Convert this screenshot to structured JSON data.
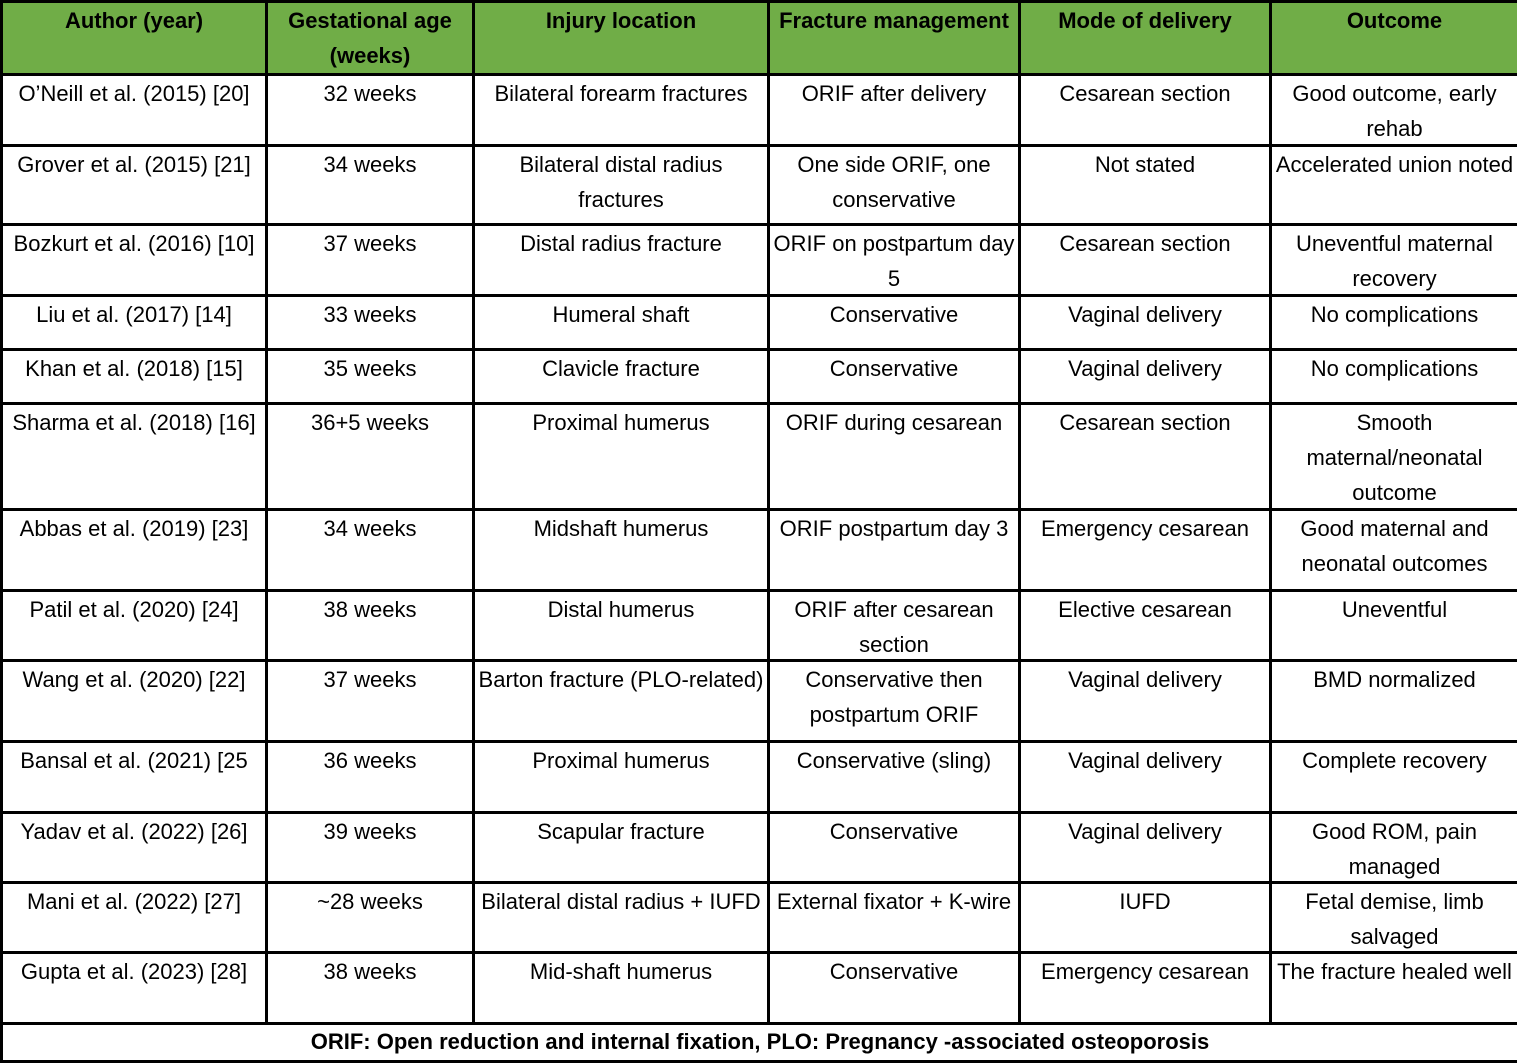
{
  "header": [
    "Author (year)",
    "Gestational age (weeks)",
    "Injury location",
    "Fracture management",
    "Mode of delivery",
    "Outcome"
  ],
  "header_color": "#70ad47",
  "rows": [
    [
      "O’Neill et al. (2015) [20]",
      "32 weeks",
      "Bilateral forearm fractures",
      "ORIF after delivery",
      "Cesarean section",
      "Good outcome, early rehab"
    ],
    [
      "Grover et al. (2015) [21]",
      "34 weeks",
      "Bilateral distal radius fractures",
      "One side ORIF, one conservative",
      "Not stated",
      "Accelerated union noted"
    ],
    [
      "Bozkurt et al. (2016) [10]",
      "37 weeks",
      "Distal radius fracture",
      "ORIF on postpartum day 5",
      "Cesarean section",
      "Uneventful maternal recovery"
    ],
    [
      "Liu et al. (2017) [14]",
      "33 weeks",
      "Humeral shaft",
      "Conservative",
      "Vaginal delivery",
      "No complications"
    ],
    [
      "Khan et al. (2018) [15]",
      "35 weeks",
      "Clavicle fracture",
      "Conservative",
      "Vaginal delivery",
      "No complications"
    ],
    [
      "Sharma et al. (2018) [16]",
      "36+5 weeks",
      "Proximal humerus",
      "ORIF during cesarean",
      "Cesarean section",
      "Smooth maternal/neonatal outcome"
    ],
    [
      "Abbas et al. (2019) [23]",
      "34 weeks",
      "Midshaft humerus",
      "ORIF postpartum day 3",
      "Emergency cesarean",
      "Good maternal and neonatal outcomes"
    ],
    [
      "Patil et al. (2020) [24]",
      "38 weeks",
      "Distal humerus",
      "ORIF after cesarean section",
      "Elective cesarean",
      "Uneventful"
    ],
    [
      "Wang et al. (2020) [22]",
      "37 weeks",
      "Barton fracture (PLO-related)",
      "Conservative then postpartum ORIF",
      "Vaginal delivery",
      "BMD normalized"
    ],
    [
      "Bansal et al. (2021) [25",
      "36 weeks",
      "Proximal humerus",
      "Conservative (sling)",
      "Vaginal delivery",
      "Complete recovery"
    ],
    [
      "Yadav et al. (2022) [26]",
      "39 weeks",
      "Scapular fracture",
      "Conservative",
      "Vaginal delivery",
      "Good ROM, pain managed"
    ],
    [
      "Mani et al. (2022) [27]",
      "~28 weeks",
      "Bilateral distal radius + IUFD",
      "External fixator + K-wire",
      "IUFD",
      "Fetal demise, limb salvaged"
    ],
    [
      "Gupta et al. (2023) [28]",
      "38 weeks",
      "Mid-shaft humerus",
      "Conservative",
      "Emergency cesarean",
      "The fracture healed well"
    ]
  ],
  "footnote": "ORIF: Open reduction and internal fixation, PLO: Pregnancy -associated osteoporosis"
}
